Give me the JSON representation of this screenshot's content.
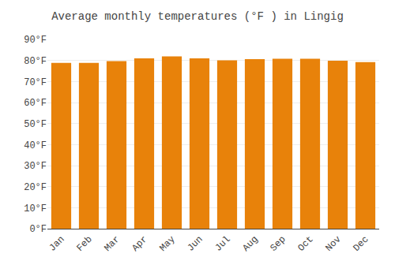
{
  "chart_data": {
    "type": "bar",
    "title": "Average monthly temperatures (°F ) in Lingig",
    "categories": [
      "Jan",
      "Feb",
      "Mar",
      "Apr",
      "May",
      "Jun",
      "Jul",
      "Aug",
      "Sep",
      "Oct",
      "Nov",
      "Dec"
    ],
    "values": [
      78.8,
      78.8,
      79.7,
      81.0,
      81.9,
      81.0,
      80.1,
      80.6,
      80.8,
      80.8,
      79.9,
      79.2
    ],
    "color": "#E8820A",
    "ylim": [
      0,
      90
    ],
    "yticks": [
      {
        "value": 0,
        "label": "0°F"
      },
      {
        "value": 10,
        "label": "10°F"
      },
      {
        "value": 20,
        "label": "20°F"
      },
      {
        "value": 30,
        "label": "30°F"
      },
      {
        "value": 40,
        "label": "40°F"
      },
      {
        "value": 50,
        "label": "50°F"
      },
      {
        "value": 60,
        "label": "60°F"
      },
      {
        "value": 70,
        "label": "70°F"
      },
      {
        "value": 80,
        "label": "80°F"
      },
      {
        "value": 90,
        "label": "90°F"
      }
    ],
    "grid": true
  }
}
